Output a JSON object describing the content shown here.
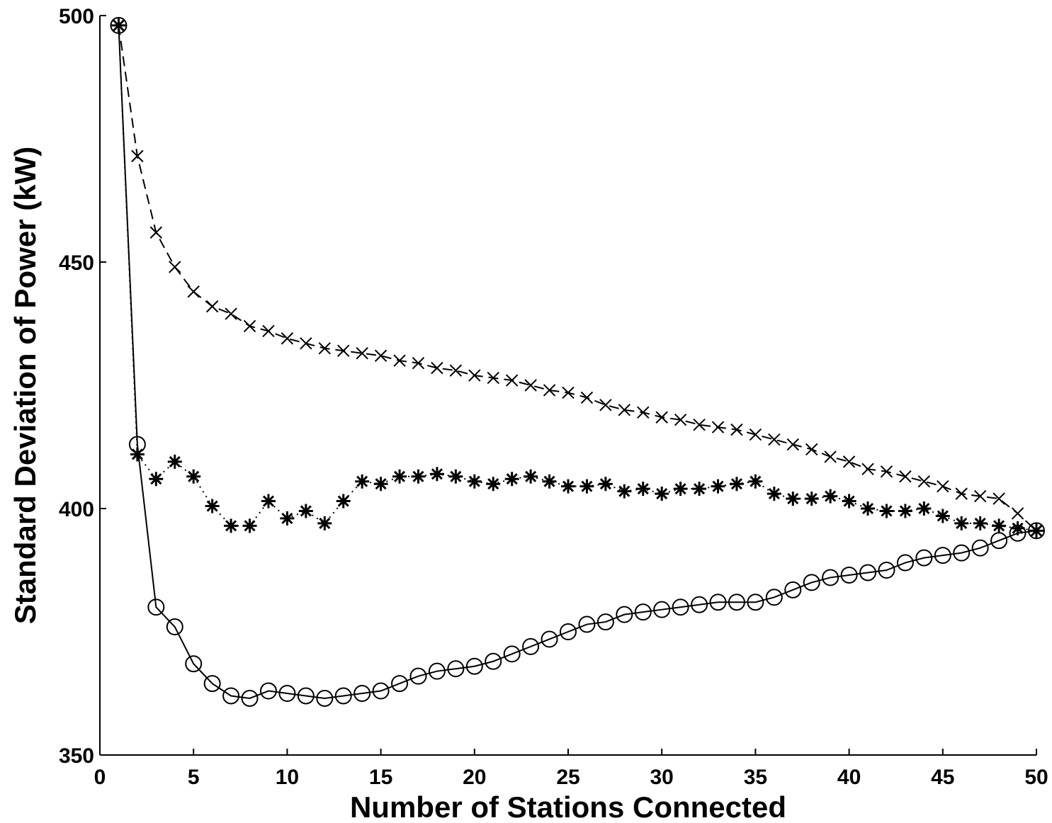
{
  "chart_data": {
    "type": "line",
    "title": "",
    "xlabel": "Number of Stations Connected",
    "ylabel": "Standard Deviation of Power (kW)",
    "xlim": [
      0,
      50
    ],
    "ylim": [
      350,
      500
    ],
    "xticks": [
      0,
      5,
      10,
      15,
      20,
      25,
      30,
      35,
      40,
      45,
      50
    ],
    "yticks": [
      350,
      400,
      450,
      500
    ],
    "xtick_labels": [
      "0",
      "5",
      "10",
      "15",
      "20",
      "25",
      "30",
      "35",
      "40",
      "45",
      "50"
    ],
    "ytick_labels": [
      "350",
      "400",
      "450",
      "500"
    ],
    "grid": false,
    "x": [
      1,
      2,
      3,
      4,
      5,
      6,
      7,
      8,
      9,
      10,
      11,
      12,
      13,
      14,
      15,
      16,
      17,
      18,
      19,
      20,
      21,
      22,
      23,
      24,
      25,
      26,
      27,
      28,
      29,
      30,
      31,
      32,
      33,
      34,
      35,
      36,
      37,
      38,
      39,
      40,
      41,
      42,
      43,
      44,
      45,
      46,
      47,
      48,
      49,
      50
    ],
    "series": [
      {
        "marker": "x",
        "line_style": "dashed",
        "color": "#000000",
        "values": [
          498,
          471.5,
          456,
          449,
          444,
          441,
          439.5,
          437,
          436,
          434.5,
          433.5,
          432.5,
          432,
          431.5,
          431,
          430,
          429.5,
          428.5,
          428,
          427,
          426.5,
          426,
          425,
          424,
          423.5,
          422.5,
          421,
          420,
          419.5,
          418.5,
          418,
          417,
          416.5,
          416,
          415,
          414,
          413,
          412,
          410.5,
          409.5,
          408,
          407.5,
          406.5,
          405.5,
          404.5,
          403,
          402.5,
          402,
          399,
          395.5
        ]
      },
      {
        "marker": "asterisk",
        "line_style": "dotted",
        "color": "#000000",
        "values": [
          498,
          411,
          406,
          409.5,
          406.5,
          400.5,
          396.5,
          396.5,
          401.5,
          398,
          399.5,
          397,
          401.5,
          405.5,
          405,
          406.5,
          406.5,
          407,
          406.5,
          405.5,
          405,
          406,
          406.5,
          405.5,
          404.5,
          404.5,
          405,
          403.5,
          404,
          403,
          404,
          404,
          404.5,
          405,
          405.5,
          403,
          402,
          402,
          402.5,
          401.5,
          400,
          399.5,
          399.5,
          400,
          398.5,
          397,
          397,
          396.5,
          396,
          395.5
        ]
      },
      {
        "marker": "circle",
        "line_style": "solid",
        "color": "#000000",
        "values": [
          498,
          413,
          380,
          376,
          368.5,
          364.5,
          362,
          361.5,
          363,
          362.5,
          362,
          361.5,
          362,
          362.5,
          363,
          364.5,
          366,
          367,
          367.5,
          368,
          369,
          370.5,
          372,
          373.5,
          375,
          376.5,
          377,
          378.5,
          379,
          379.5,
          380,
          380.5,
          381,
          381,
          381,
          382,
          383.5,
          385,
          386,
          386.5,
          387,
          387.5,
          389,
          390,
          390.5,
          391,
          392,
          393.5,
          395,
          395.5
        ]
      }
    ]
  }
}
